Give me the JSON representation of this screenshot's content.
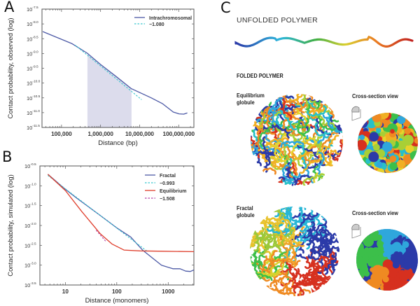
{
  "panels": {
    "a": {
      "letter": "A"
    },
    "b": {
      "letter": "B"
    },
    "c": {
      "letter": "C",
      "unfolded_title": "UNFOLDED POLYMER",
      "folded_title": "FOLDED POLYMER",
      "equilibrium_label_1": "Equilibrium",
      "equilibrium_label_2": "globule",
      "fractal_label_1": "Fractal",
      "fractal_label_2": "globule",
      "cross_section_label_1": "Cross-section view",
      "cross_section_label_2": "Cross-section view"
    }
  },
  "colors": {
    "fractal_line": "#4d5aa6",
    "fit_cyan": "#38c6cf",
    "equilibrium_line": "#df3e2c",
    "equilibrium_fit": "#b13fa6",
    "shaded_region": "#dcdcec"
  },
  "chart_data": [
    {
      "id": "A",
      "type": "line",
      "xlabel": "Distance (bp)",
      "ylabel": "Contact probability, observed (log)",
      "x_scale": "log",
      "y_scale": "log",
      "xlim": [
        31623,
        245000000
      ],
      "ylim_log10": [
        -11.5,
        -7.5
      ],
      "x_ticks": [
        {
          "value": 100000,
          "label": "100,000"
        },
        {
          "value": 1000000,
          "label": "1,000,000"
        },
        {
          "value": 10000000,
          "label": "10,000,000"
        },
        {
          "value": 100000000,
          "label": "100,000,000"
        }
      ],
      "y_ticks": [
        {
          "log10": -7.5,
          "base": "10",
          "exp": "-7.5"
        },
        {
          "log10": -8.0,
          "base": "10",
          "exp": "-8.0"
        },
        {
          "log10": -8.5,
          "base": "10",
          "exp": "-8.5"
        },
        {
          "log10": -9.0,
          "base": "10",
          "exp": "-9.0"
        },
        {
          "log10": -9.5,
          "base": "10",
          "exp": "-9.5"
        },
        {
          "log10": -10.0,
          "base": "10",
          "exp": "-10.0"
        },
        {
          "log10": -10.5,
          "base": "10",
          "exp": "-10.5"
        },
        {
          "log10": -11.0,
          "base": "10",
          "exp": "-11.0"
        },
        {
          "log10": -11.5,
          "base": "10",
          "exp": "-11.5"
        }
      ],
      "shaded_range": [
        460000,
        6200000
      ],
      "legend_position": "top-right",
      "series": [
        {
          "name": "Intrachromosomal",
          "style": "solid",
          "color": "#4d5aa6",
          "x_log10": [
            4.52,
            5.27,
            5.66,
            5.99,
            6.41,
            6.79,
            7.3,
            7.59,
            7.86,
            8.01,
            8.13,
            8.22
          ],
          "y_log10": [
            -8.26,
            -8.67,
            -8.99,
            -9.36,
            -9.79,
            -10.19,
            -10.5,
            -10.7,
            -10.98,
            -11.04,
            -11.05,
            -11.01
          ]
        },
        {
          "name": "−1.080",
          "style": "dashed",
          "color": "#38c6cf",
          "x_log10": [
            5.35,
            7.05
          ],
          "y_log10": [
            -8.72,
            -10.56
          ]
        }
      ]
    },
    {
      "id": "B",
      "type": "line",
      "xlabel": "Distance (monomers)",
      "ylabel": "Contact probability, simulated (log)",
      "x_scale": "log",
      "y_scale": "log",
      "xlim": [
        3.2,
        3160
      ],
      "ylim_log10": [
        -3.5,
        -0.5
      ],
      "x_ticks": [
        {
          "value": 10,
          "label": "10"
        },
        {
          "value": 100,
          "label": "100"
        },
        {
          "value": 1000,
          "label": "1000"
        }
      ],
      "y_ticks": [
        {
          "log10": -0.5,
          "base": "10",
          "exp": "-0.5"
        },
        {
          "log10": -1.0,
          "base": "10",
          "exp": "-1.0"
        },
        {
          "log10": -1.5,
          "base": "10",
          "exp": "-1.5"
        },
        {
          "log10": -2.0,
          "base": "10",
          "exp": "-2.0"
        },
        {
          "log10": -2.5,
          "base": "10",
          "exp": "-2.5"
        },
        {
          "log10": -3.0,
          "base": "10",
          "exp": "-3.0"
        },
        {
          "log10": -3.5,
          "base": "10",
          "exp": "-3.5"
        }
      ],
      "legend_position": "top-right",
      "series": [
        {
          "name": "Fractal",
          "style": "solid",
          "color": "#4d5aa6",
          "x_log10": [
            0.66,
            1.0,
            1.23,
            1.64,
            2.0,
            2.27,
            2.5,
            2.87,
            3.09,
            3.23,
            3.34,
            3.43,
            3.5
          ],
          "y_log10": [
            -0.71,
            -1.09,
            -1.32,
            -1.71,
            -2.06,
            -2.29,
            -2.62,
            -3.0,
            -3.09,
            -3.09,
            -3.15,
            -3.16,
            -3.12
          ]
        },
        {
          "name": "−0.993",
          "style": "dashed",
          "color": "#38c6cf",
          "x_log10": [
            0.66,
            2.6
          ],
          "y_log10": [
            -0.74,
            -2.66
          ]
        },
        {
          "name": "Equilibrium",
          "style": "solid",
          "color": "#df3e2c",
          "x_log10": [
            0.66,
            1.0,
            1.32,
            1.68,
            1.91,
            2.14,
            2.45,
            2.91,
            3.5
          ],
          "y_log10": [
            -0.71,
            -1.12,
            -1.65,
            -2.21,
            -2.47,
            -2.62,
            -2.64,
            -2.65,
            -2.66
          ]
        },
        {
          "name": "−1.508",
          "style": "dashed",
          "color": "#b13fa6",
          "x_log10": [
            1.6,
            1.8
          ],
          "y_log10": [
            -2.12,
            -2.42
          ]
        }
      ]
    }
  ]
}
